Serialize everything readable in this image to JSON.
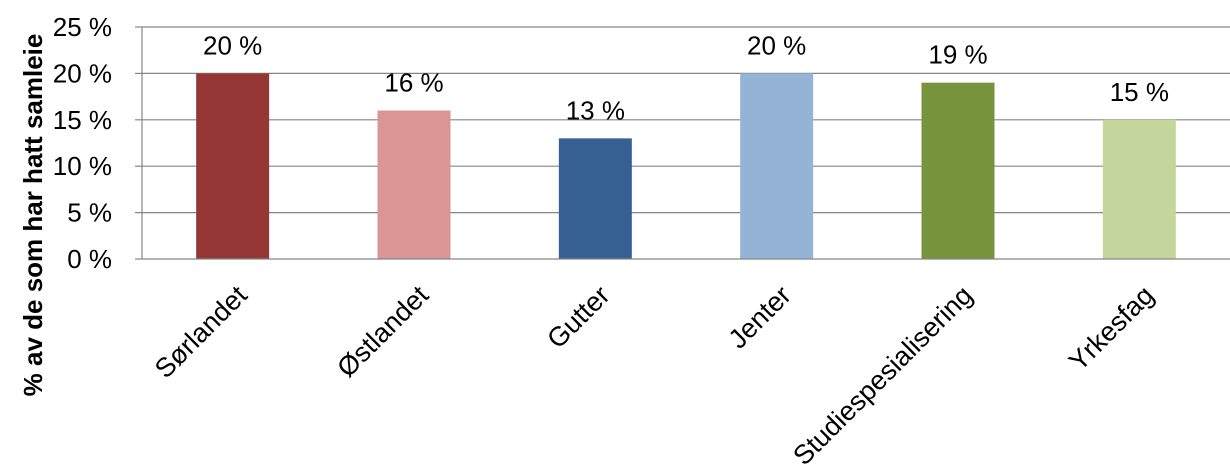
{
  "chart_data": {
    "type": "bar",
    "title": "",
    "xlabel": "",
    "ylabel": "% av de som har hatt samleie",
    "ylim": [
      0,
      25
    ],
    "yticks": [
      0,
      5,
      10,
      15,
      20,
      25
    ],
    "ytick_labels": [
      "0 %",
      "5 %",
      "10 %",
      "15 %",
      "20 %",
      "25 %"
    ],
    "grid": true,
    "legend": "none",
    "categories": [
      "Sørlandet",
      "Østlandet",
      "Gutter",
      "Jenter",
      "Studiespesialisering",
      "Yrkesfag"
    ],
    "values": [
      20,
      16,
      13,
      20,
      19,
      15
    ],
    "data_labels": [
      "20 %",
      "16 %",
      "13 %",
      "20 %",
      "19 %",
      "15 %"
    ],
    "colors": [
      "#953735",
      "#D99694",
      "#376092",
      "#95B3D7",
      "#77933C",
      "#C3D69B"
    ]
  }
}
